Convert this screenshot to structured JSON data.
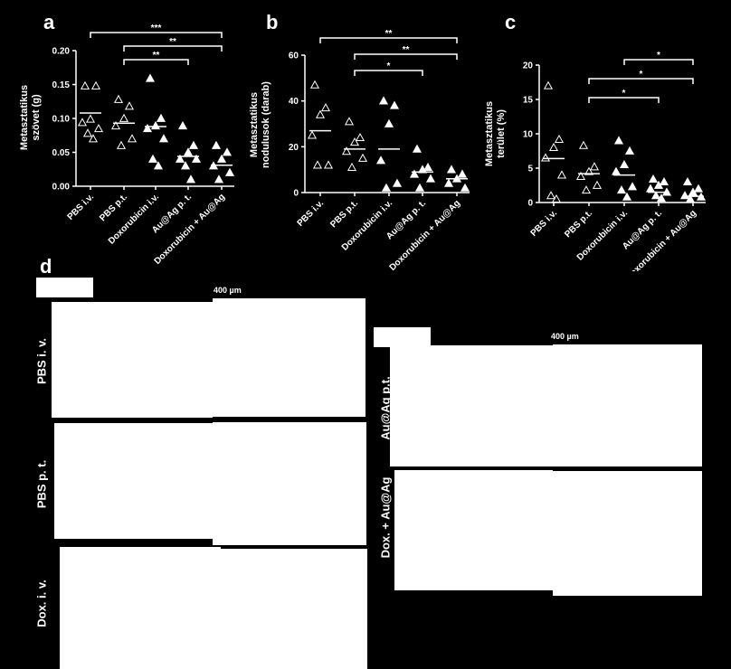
{
  "panel_d": {
    "letter": "d",
    "scale_label": "400 µm",
    "rows_left": [
      "PBS i. v.",
      "PBS p. t.",
      "Dox. i. v."
    ],
    "rows_right": [
      "Au@Ag p.t.",
      "Dox. + Au@Ag"
    ]
  },
  "chart_data": [
    {
      "letter": "a",
      "type": "scatter",
      "ylabel": "Metasztatikus\nszövet (g)",
      "ylim": [
        0,
        0.2
      ],
      "yticks": [
        "0.00",
        "0.05",
        "0.10",
        "0.15",
        "0.20"
      ],
      "categories": [
        "PBS i.v.",
        "PBS p.t.",
        "Doxorubicin  i.v.",
        "Au@Ag p. t.",
        "Doxorubicin + Au@Ag"
      ],
      "markers": [
        "open-triangle",
        "open-triangle",
        "filled-triangle",
        "filled-triangle",
        "filled-triangle"
      ],
      "points": [
        [
          0.148,
          0.148,
          0.099,
          0.094,
          0.085,
          0.078,
          0.07
        ],
        [
          0.128,
          0.118,
          0.1,
          0.089,
          0.07,
          0.06
        ],
        [
          0.159,
          0.1,
          0.089,
          0.085,
          0.07,
          0.04,
          0.03
        ],
        [
          0.089,
          0.06,
          0.05,
          0.04,
          0.04,
          0.03,
          0.01
        ],
        [
          0.06,
          0.05,
          0.04,
          0.03,
          0.02,
          0.01
        ]
      ],
      "medians": [
        0.108,
        0.093,
        0.088,
        0.044,
        0.031
      ],
      "significance": [
        {
          "from": 0,
          "to": 4,
          "label": "***"
        },
        {
          "from": 1,
          "to": 4,
          "label": "**"
        },
        {
          "from": 1,
          "to": 3,
          "label": "**"
        }
      ]
    },
    {
      "letter": "b",
      "type": "scatter",
      "ylabel": "Metasztatikus\nnodulusok (darab)",
      "ylim": [
        0,
        60
      ],
      "yticks": [
        "0",
        "20",
        "40",
        "60"
      ],
      "categories": [
        "PBS i.v.",
        "PBS p.t.",
        "Doxorubicin  i.v.",
        "Au@Ag p. t.",
        "Doxorubicin + Au@Ag"
      ],
      "markers": [
        "open-triangle",
        "open-triangle",
        "filled-triangle",
        "filled-triangle",
        "filled-triangle"
      ],
      "points": [
        [
          47,
          37,
          34,
          25,
          12,
          12
        ],
        [
          31,
          24,
          22,
          18,
          15,
          11
        ],
        [
          40,
          38,
          30,
          14,
          4,
          2
        ],
        [
          19,
          11,
          10,
          8,
          6,
          2
        ],
        [
          10,
          8,
          6,
          4,
          2
        ]
      ],
      "medians": [
        27,
        19,
        19,
        9,
        6
      ],
      "significance": [
        {
          "from": 0,
          "to": 4,
          "label": "**"
        },
        {
          "from": 1,
          "to": 4,
          "label": "**"
        },
        {
          "from": 1,
          "to": 3,
          "label": "*"
        }
      ]
    },
    {
      "letter": "c",
      "type": "scatter",
      "ylabel": "Metasztatikus\nterület (%)",
      "ylim": [
        0,
        20
      ],
      "yticks": [
        "0",
        "5",
        "10",
        "15",
        "20"
      ],
      "categories": [
        "PBS i.v.",
        "PBS p.t.",
        "Doxorubicin  i.v.",
        "Au@Ag p. t.",
        "Doxorubicin + Au@Ag"
      ],
      "markers": [
        "open-triangle",
        "open-triangle",
        "filled-triangle",
        "filled-triangle",
        "filled-triangle"
      ],
      "points": [
        [
          17.0,
          9.2,
          8.0,
          6.5,
          4.0,
          1.0,
          0.5
        ],
        [
          8.3,
          5.2,
          4.5,
          3.8,
          2.5,
          1.8
        ],
        [
          9.0,
          7.5,
          5.5,
          4.5,
          2.3,
          1.8,
          0.8
        ],
        [
          3.4,
          3.0,
          2.5,
          2.0,
          1.5,
          1.0,
          0.6
        ],
        [
          3.0,
          2.0,
          1.5,
          1.0,
          0.8,
          0.5
        ]
      ],
      "medians": [
        6.4,
        4.2,
        4.0,
        1.5,
        0.9
      ],
      "significance": [
        {
          "from": 2,
          "to": 4,
          "label": "*"
        },
        {
          "from": 1,
          "to": 4,
          "label": "*"
        },
        {
          "from": 1,
          "to": 3,
          "label": "*"
        }
      ]
    }
  ]
}
